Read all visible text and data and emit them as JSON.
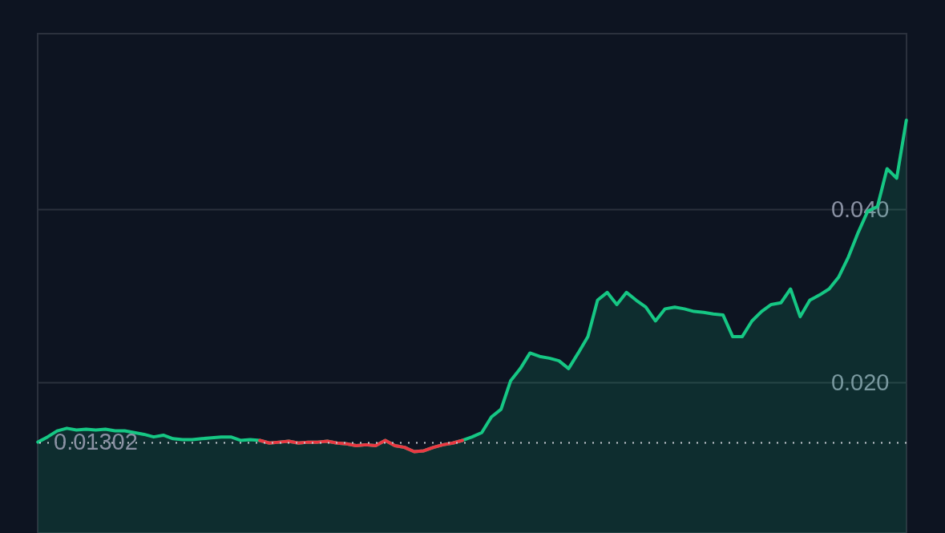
{
  "chart_data": {
    "type": "area",
    "categories": [
      null,
      null,
      null,
      null,
      null,
      null,
      null,
      null,
      null,
      null,
      null,
      null,
      null,
      null,
      null,
      null,
      null,
      null,
      null,
      null,
      null,
      null,
      null,
      null,
      null,
      null,
      null,
      null,
      null,
      null,
      null,
      null,
      null,
      null,
      null,
      null,
      null,
      null,
      null,
      null,
      null,
      null,
      null,
      null,
      null,
      null,
      null,
      null,
      null,
      null,
      null,
      null,
      null,
      null,
      null,
      null,
      null,
      null,
      null,
      null,
      null,
      null,
      null,
      null,
      null,
      null,
      null,
      null,
      null,
      null,
      null,
      null,
      null,
      null,
      null,
      null,
      null,
      null,
      null,
      null,
      null,
      null,
      null,
      null,
      null,
      null,
      null,
      null,
      null,
      null,
      null
    ],
    "series": [
      {
        "color": "#16c784",
        "values": [
          0.0131,
          0.0137,
          0.0144,
          0.0147,
          0.0145,
          0.0146,
          0.0145,
          0.0146,
          0.0144,
          0.0144,
          0.0142,
          0.014,
          0.0137,
          0.0139,
          0.0135,
          0.0134,
          0.0134,
          0.0135,
          0.0136,
          0.0137,
          0.0137,
          0.0133,
          0.0134,
          0.0133,
          0.013,
          0.0131,
          0.0132,
          0.013,
          0.0131,
          0.0131,
          0.0132,
          0.013,
          0.0129,
          0.0127,
          0.0128,
          0.0127,
          0.0133,
          0.0127,
          0.0125,
          0.012,
          0.0121,
          0.0125,
          0.0128,
          0.013,
          0.0133,
          0.0137,
          0.0142,
          0.016,
          0.0169,
          0.0202,
          0.0216,
          0.0234,
          0.023,
          0.0228,
          0.0225,
          0.0216,
          0.0234,
          0.0253,
          0.0295,
          0.0304,
          0.029,
          0.0304,
          0.0295,
          0.0287,
          0.0271,
          0.0285,
          0.0287,
          0.0285,
          0.0282,
          0.0281,
          0.0279,
          0.0278,
          0.0253,
          0.0253,
          0.0271,
          0.0282,
          0.029,
          0.0292,
          0.0308,
          0.0276,
          0.0295,
          0.0301,
          0.0308,
          0.0322,
          0.0345,
          0.0373,
          0.0398,
          0.0403,
          0.0447,
          0.0436,
          0.0503
        ]
      },
      {
        "type": "line",
        "color": "#ea3943",
        "values": [
          null,
          null,
          null,
          null,
          null,
          null,
          null,
          null,
          null,
          null,
          null,
          null,
          null,
          null,
          null,
          null,
          null,
          null,
          null,
          null,
          null,
          null,
          null,
          0.0133,
          0.013,
          0.0131,
          0.0132,
          0.013,
          0.0131,
          0.0131,
          0.0132,
          0.013,
          0.0129,
          0.0127,
          0.0128,
          0.0127,
          0.0133,
          0.0127,
          0.0125,
          0.012,
          0.0121,
          0.0125,
          0.0128,
          0.013,
          0.0133,
          null,
          null,
          null,
          null,
          null,
          null,
          null,
          null,
          null,
          null,
          null,
          null,
          null,
          null,
          null,
          null,
          null,
          null,
          null,
          null,
          null,
          null,
          null,
          null,
          null,
          null,
          null,
          null,
          null,
          null,
          null,
          null,
          null,
          null,
          null,
          null,
          null,
          null,
          null,
          null,
          null,
          null,
          null,
          null,
          null,
          null
        ]
      }
    ],
    "ylim": [
      0.0026,
      0.0603
    ],
    "yticks": [
      {
        "value": 0.02,
        "label": "0.020"
      },
      {
        "value": 0.04,
        "label": "0.040"
      }
    ],
    "grid": "y",
    "legend": false,
    "ref_lines": [
      {
        "axis": "y",
        "value": 0.01302,
        "label": "0.01302",
        "color": "#c8ccd4",
        "line_style": "dotted"
      }
    ]
  }
}
